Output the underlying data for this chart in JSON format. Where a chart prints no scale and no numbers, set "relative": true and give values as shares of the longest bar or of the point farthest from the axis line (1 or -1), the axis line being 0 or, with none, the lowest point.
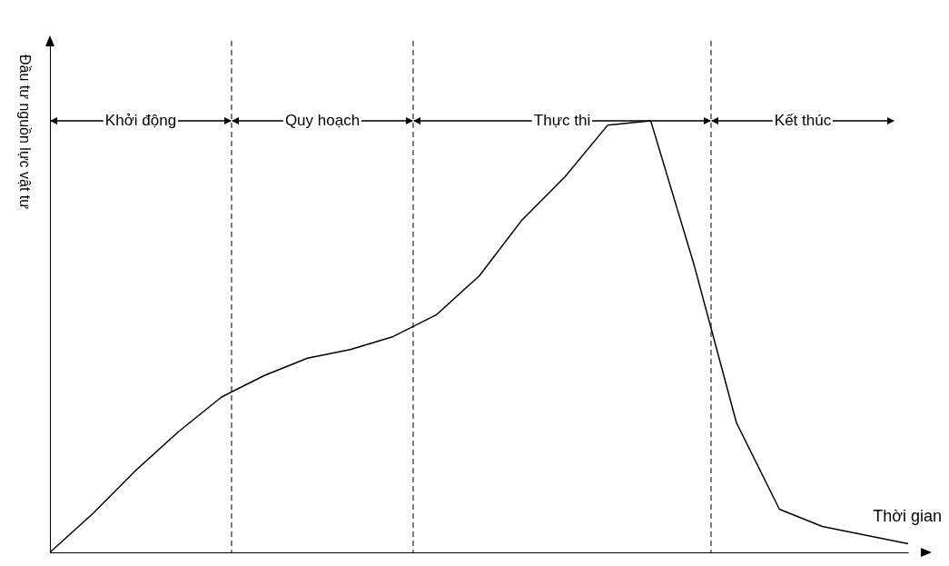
{
  "chart_data": {
    "type": "line",
    "relative": true,
    "xlabel": "Thời gian",
    "ylabel": "Đầu tư nguồn lực vật tư",
    "color": "#000000",
    "line_style": "solid",
    "grid": true,
    "categories": [
      null,
      null,
      null,
      null,
      null,
      null,
      null,
      null,
      null,
      null,
      null,
      null,
      null,
      null,
      null,
      null,
      null,
      null,
      null,
      null,
      null
    ],
    "values": [
      0,
      0.09,
      0.19,
      0.28,
      0.36,
      0.41,
      0.45,
      0.47,
      0.5,
      0.55,
      0.64,
      0.77,
      0.87,
      0.99,
      1,
      0.67,
      0.3,
      0.1,
      0.06,
      0.04,
      0.02
    ],
    "annotations": [
      "Khởi động",
      "Quy hoạch",
      "Thực thi",
      "Kết thúc"
    ]
  }
}
